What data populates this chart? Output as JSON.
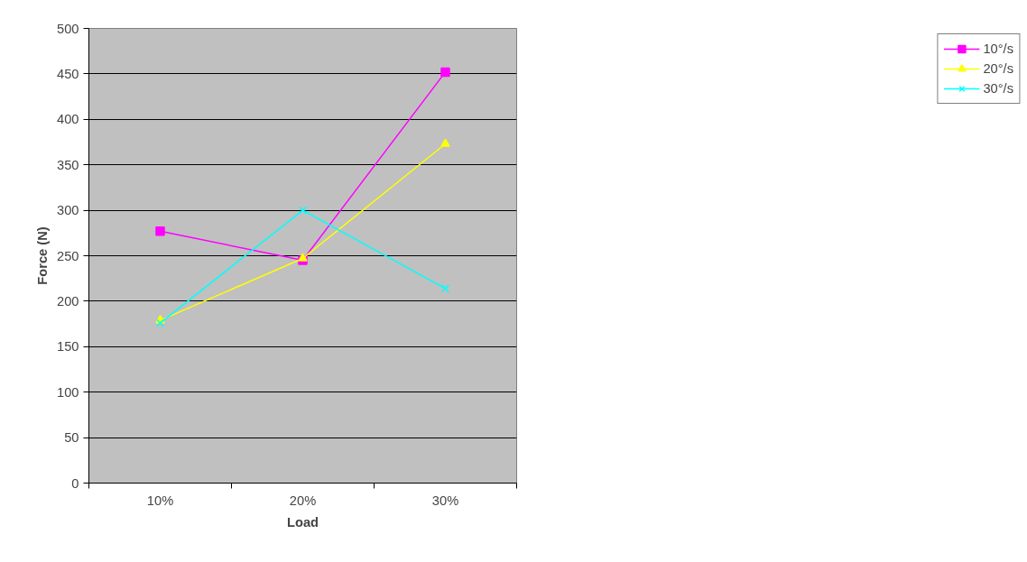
{
  "chart_data": {
    "type": "line",
    "xlabel": "Load",
    "ylabel": "Force (N)",
    "categories": [
      "10%",
      "20%",
      "30%"
    ],
    "series": [
      {
        "name": "10°/s",
        "color": "#ff00ff",
        "marker": "square",
        "values": [
          277,
          245,
          452
        ]
      },
      {
        "name": "20°/s",
        "color": "#ffff00",
        "marker": "triangle",
        "values": [
          179,
          247,
          373
        ]
      },
      {
        "name": "30°/s",
        "color": "#00ffff",
        "marker": "cross",
        "values": [
          176,
          300,
          214
        ]
      }
    ],
    "ylim": [
      0,
      500
    ],
    "yticks": [
      0,
      50,
      100,
      150,
      200,
      250,
      300,
      350,
      400,
      450,
      500
    ],
    "grid": "y",
    "legend": "right",
    "line_style": "solid"
  }
}
